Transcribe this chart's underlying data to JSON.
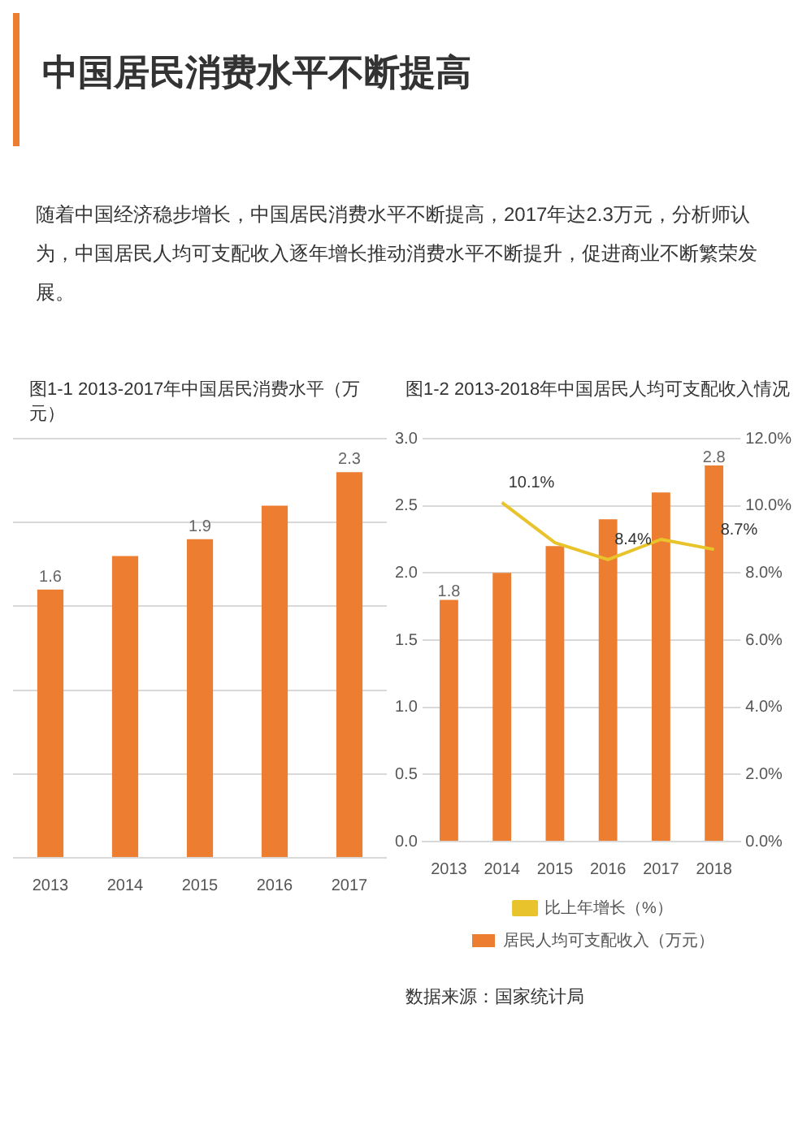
{
  "chart_data": [
    {
      "type": "other",
      "title": "中国居民消费水平不断提高",
      "annotations": [
        "随着中国经济稳步增长，中国居民消费水平不断提高，2017年达2.3万元，分析师认为，中国居民人均可支配收入逐年增长推动消费水平不断提升，促进商业不断繁荣发展。"
      ]
    },
    {
      "type": "bar",
      "title": "图1-1 2013-2017年中国居民消费水平（万元）",
      "categories": [
        "2013",
        "2014",
        "2015",
        "2016",
        "2017"
      ],
      "grid": "y",
      "tick_labels": "x",
      "series": [
        {
          "color": "#ed7d31",
          "values": [
            1.6,
            1.8,
            1.9,
            2.1,
            2.3
          ],
          "value_labels": [
            "1.6",
            null,
            "1.9",
            null,
            "2.3"
          ]
        }
      ]
    },
    {
      "type": "bar",
      "title": "图1-2 2013-2018年中国居民人均可支配收入情况",
      "categories": [
        "2013",
        "2014",
        "2015",
        "2016",
        "2017",
        "2018"
      ],
      "grid": "y",
      "legend": "bottom",
      "ylim": [
        0,
        3
      ],
      "yticks": [
        {
          "value": 0,
          "label": "0.0"
        },
        0.5,
        {
          "value": 1,
          "label": "1.0"
        },
        1.5,
        {
          "value": 2,
          "label": "2.0"
        },
        2.5,
        {
          "value": 3,
          "label": "3.0"
        }
      ],
      "y2lim": [
        0,
        12
      ],
      "y2ticks": [
        {
          "value": 0,
          "label": "0.0%"
        },
        {
          "value": 2,
          "label": "2.0%"
        },
        {
          "value": 4,
          "label": "4.0%"
        },
        {
          "value": 6,
          "label": "6.0%"
        },
        {
          "value": 8,
          "label": "8.0%"
        },
        {
          "value": 10,
          "label": "10.0%"
        },
        {
          "value": 12,
          "label": "12.0%"
        }
      ],
      "annotations": [
        "数据来源：国家统计局"
      ],
      "series": [
        {
          "name": "居民人均可支配收入（万元）",
          "color": "#ed7d31",
          "values": [
            1.8,
            2.0,
            2.2,
            2.4,
            2.6,
            2.8
          ],
          "value_labels": [
            "1.8",
            null,
            null,
            null,
            null,
            "2.8"
          ]
        },
        {
          "name": "比上年增长（%）",
          "type": "line",
          "axis": "y2",
          "marker": "none",
          "color": "#e8c32c",
          "values": [
            null,
            10.1,
            8.9,
            8.4,
            9.0,
            8.7
          ],
          "value_labels": [
            null,
            "10.1%",
            null,
            "8.4%",
            null,
            "8.7%"
          ]
        }
      ]
    }
  ]
}
